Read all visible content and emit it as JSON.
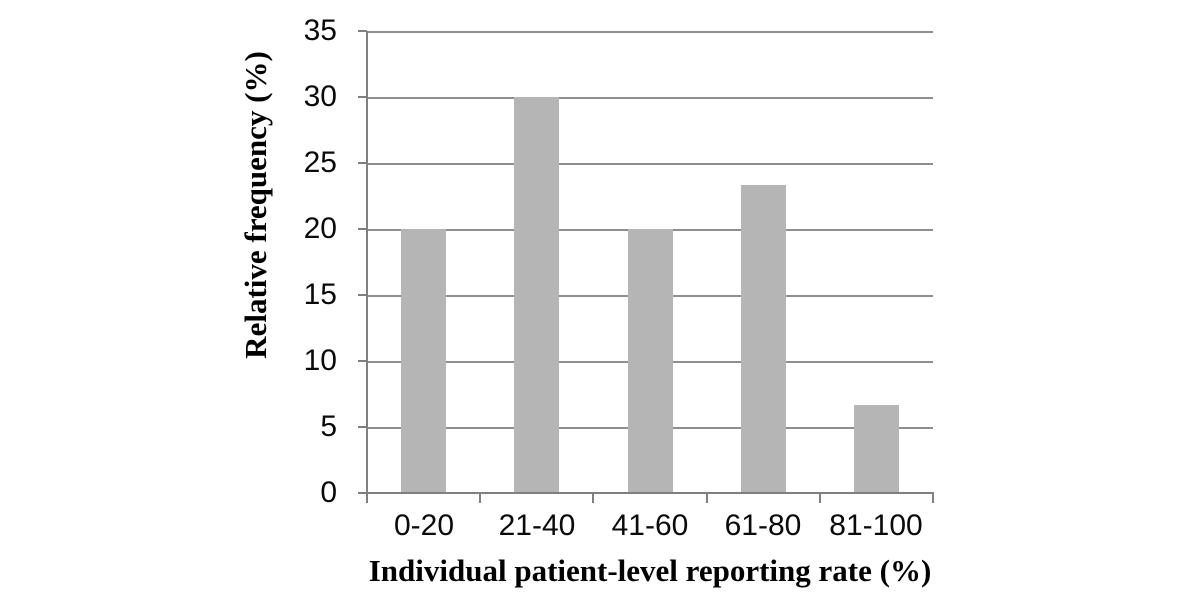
{
  "chart_data": {
    "type": "bar",
    "categories": [
      "0-20",
      "21-40",
      "41-60",
      "61-80",
      "81-100"
    ],
    "values": [
      20,
      30,
      20,
      23.3,
      6.7
    ],
    "title": "",
    "xlabel": "Individual patient-level reporting rate (%)",
    "ylabel": "Relative frequency (%)",
    "ylim": [
      0,
      35
    ],
    "ytick_interval": 5,
    "ytick_labels": [
      "35",
      "30",
      "25",
      "20",
      "15",
      "10",
      "5",
      "0"
    ],
    "grid": true,
    "legend_position": "none",
    "colors": {
      "bar_fill": "#b5b5b5",
      "gridline": "#8f8f8f",
      "axis_line": "#808080",
      "text": "#0a0a0a"
    }
  }
}
